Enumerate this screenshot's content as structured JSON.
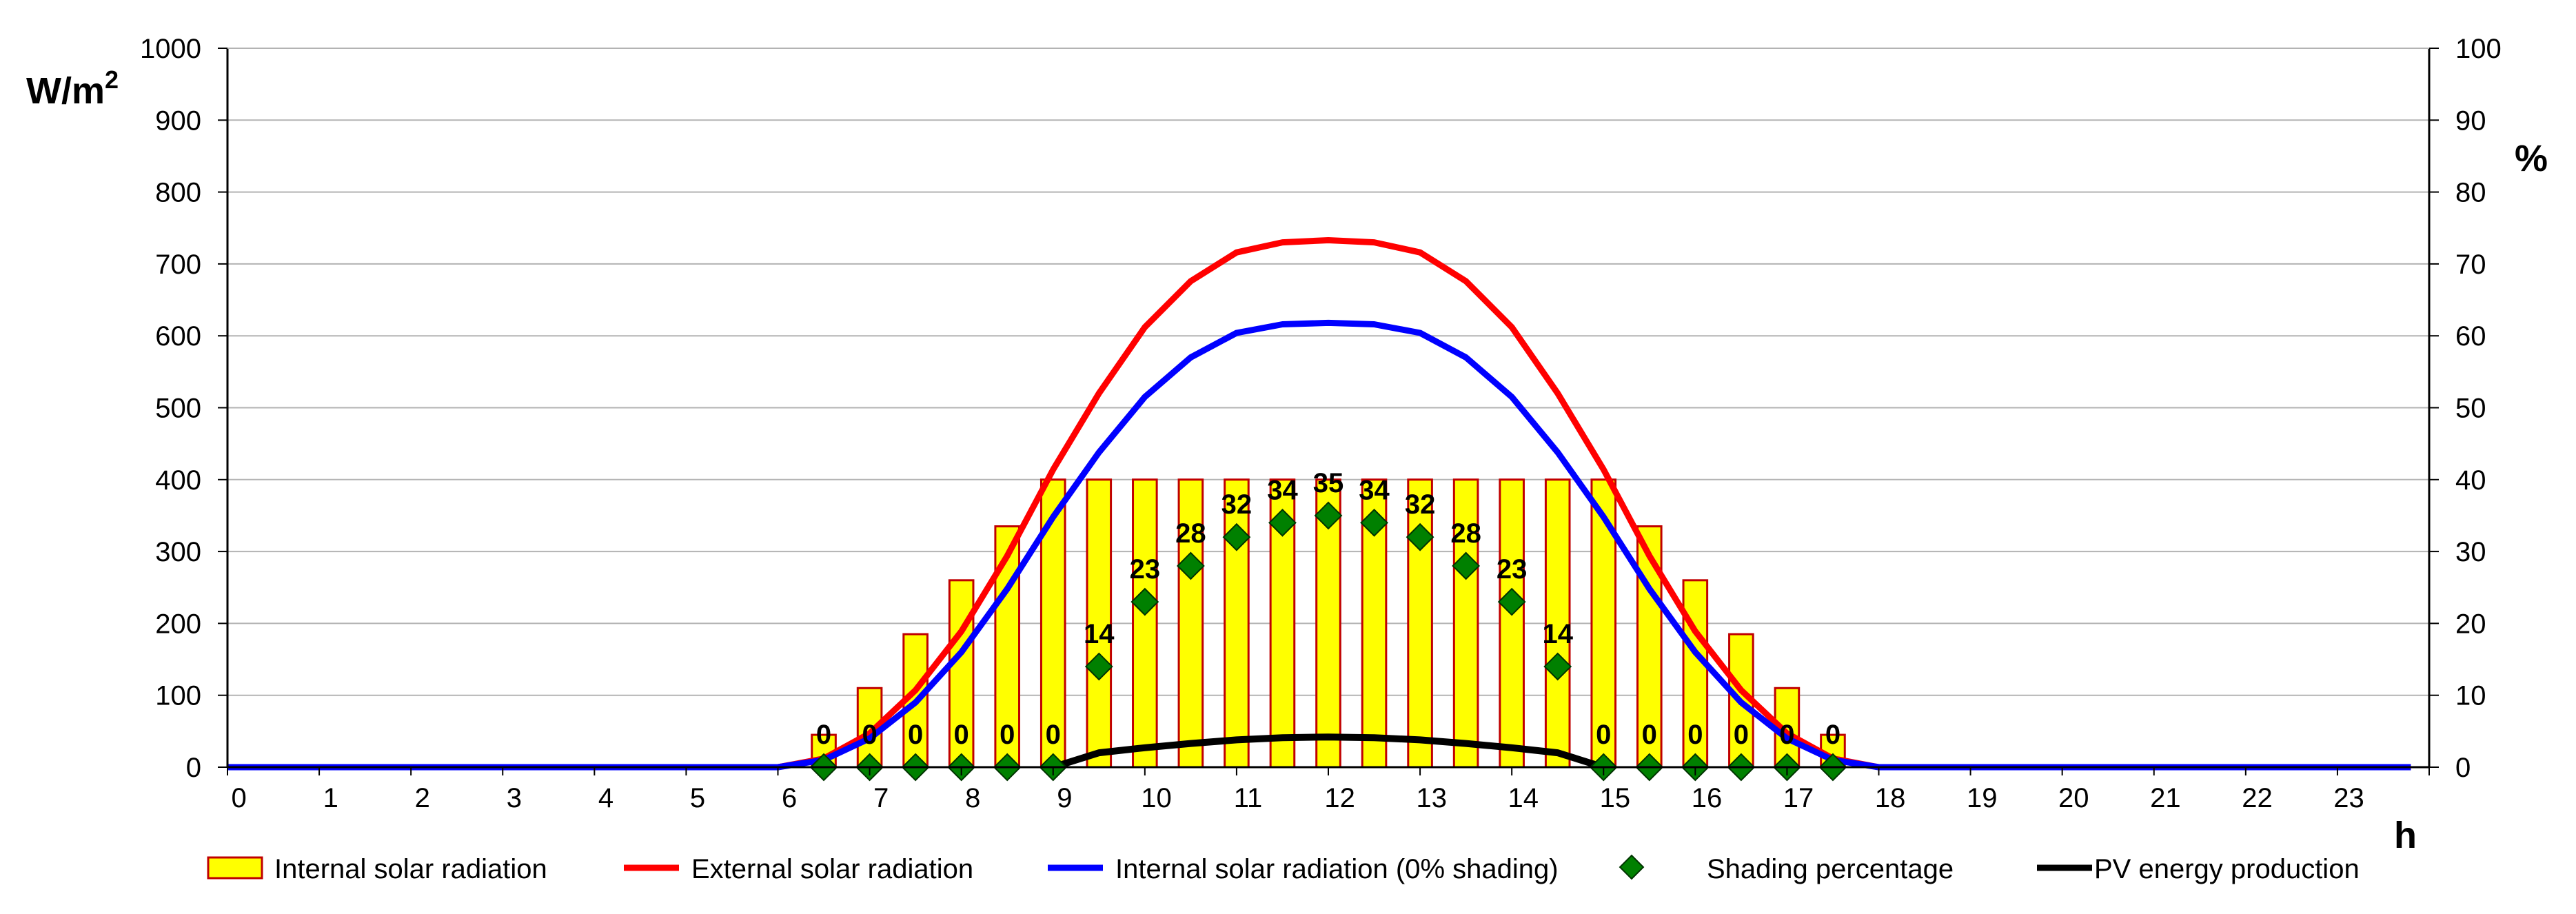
{
  "chart_data": {
    "type": "bar",
    "title": "",
    "xlabel": "h",
    "ylabel_left": "W/m",
    "ylabel_left_sup": "2",
    "ylabel_right": "%",
    "xlim": [
      0,
      24
    ],
    "xticks": [
      "0",
      "1",
      "2",
      "3",
      "4",
      "5",
      "6",
      "7",
      "8",
      "9",
      "10",
      "11",
      "12",
      "13",
      "14",
      "15",
      "16",
      "17",
      "18",
      "19",
      "20",
      "21",
      "22",
      "23"
    ],
    "ylim_left": [
      0,
      1000
    ],
    "yticks_left": [
      "0",
      "100",
      "200",
      "300",
      "400",
      "500",
      "600",
      "700",
      "800",
      "900",
      "1000"
    ],
    "ylim_right": [
      0,
      100
    ],
    "yticks_right": [
      "0",
      "10",
      "20",
      "30",
      "40",
      "50",
      "60",
      "70",
      "80",
      "90",
      "100"
    ],
    "grid": true,
    "colors": {
      "bar_fill": "#ffff00",
      "bar_stroke": "#c00000",
      "external": "#ff0000",
      "internal_0": "#0000ff",
      "shading": "#008000",
      "pv": "#000000",
      "grid": "#b3b3b3"
    },
    "series": [
      {
        "name": "Internal solar radiation",
        "kind": "bar",
        "x": [
          6.5,
          7,
          7.5,
          8,
          8.5,
          9,
          9.5,
          10,
          10.5,
          11,
          11.5,
          12,
          12.5,
          13,
          13.5,
          14,
          14.5,
          15,
          15.5,
          16,
          16.5,
          17,
          17.5
        ],
        "values": [
          45,
          110,
          185,
          260,
          335,
          400,
          400,
          400,
          400,
          400,
          400,
          400,
          400,
          400,
          400,
          400,
          400,
          400,
          335,
          260,
          185,
          110,
          45
        ]
      },
      {
        "name": "External solar radiation",
        "kind": "line",
        "x": [
          0,
          6,
          6.5,
          7,
          7.5,
          8,
          8.5,
          9,
          9.5,
          10,
          10.5,
          11,
          11.5,
          12,
          12.5,
          13,
          13.5,
          14,
          14.5,
          15,
          15.5,
          16,
          16.5,
          17,
          17.5,
          18,
          23.8
        ],
        "values": [
          0,
          0,
          12,
          47,
          107,
          189,
          294,
          414,
          520,
          612,
          676,
          716,
          730,
          733,
          730,
          716,
          676,
          612,
          520,
          414,
          294,
          189,
          107,
          47,
          12,
          0,
          0
        ]
      },
      {
        "name": "Internal solar radiation (0% shading)",
        "kind": "line",
        "x": [
          0,
          6,
          6.5,
          7,
          7.5,
          8,
          8.5,
          9,
          9.5,
          10,
          10.5,
          11,
          11.5,
          12,
          12.5,
          13,
          13.5,
          14,
          14.5,
          15,
          15.5,
          16,
          16.5,
          17,
          17.5,
          18,
          23.8
        ],
        "values": [
          0,
          0,
          10,
          40,
          90,
          160,
          248,
          348,
          438,
          515,
          570,
          604,
          616,
          618,
          616,
          604,
          570,
          515,
          438,
          348,
          248,
          160,
          90,
          40,
          10,
          0,
          0
        ]
      },
      {
        "name": "Shading percentage",
        "kind": "scatter",
        "axis": "right",
        "x": [
          6.5,
          7,
          7.5,
          8,
          8.5,
          9,
          9.5,
          10,
          10.5,
          11,
          11.5,
          12,
          12.5,
          13,
          13.5,
          14,
          14.5,
          15,
          15.5,
          16,
          16.5,
          17,
          17.5
        ],
        "values": [
          0,
          0,
          0,
          0,
          0,
          0,
          14,
          23,
          28,
          32,
          34,
          35,
          34,
          32,
          28,
          23,
          14,
          0,
          0,
          0,
          0,
          0,
          0
        ],
        "labels": [
          "0",
          "0",
          "0",
          "0",
          "0",
          "0",
          "14",
          "23",
          "28",
          "32",
          "34",
          "35",
          "34",
          "32",
          "28",
          "23",
          "14",
          "0",
          "0",
          "0",
          "0",
          "0",
          "0"
        ]
      },
      {
        "name": "PV energy production",
        "kind": "line",
        "x": [
          9,
          9.5,
          10,
          10.5,
          11,
          11.5,
          12,
          12.5,
          13,
          13.5,
          14,
          14.5,
          15
        ],
        "values": [
          0,
          20,
          27,
          33,
          38,
          41,
          42,
          41,
          38,
          33,
          27,
          20,
          0
        ]
      }
    ],
    "legend": {
      "position": "bottom",
      "items": [
        "Internal solar radiation",
        "External solar radiation",
        "Internal solar radiation (0% shading)",
        "Shading percentage",
        "PV energy production"
      ]
    }
  }
}
